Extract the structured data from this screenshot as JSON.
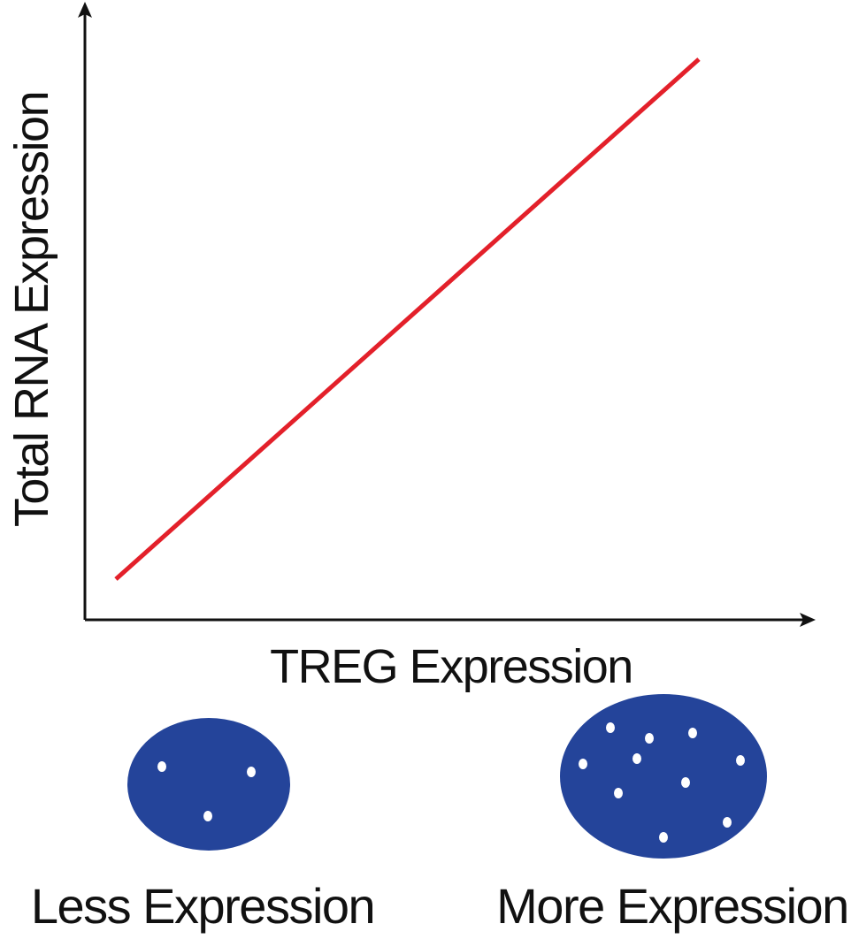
{
  "axes": {
    "x_label": "TREG Expression",
    "y_label": "Total RNA Expression"
  },
  "trend": {
    "description_color": "#e3202a",
    "direction": "increasing"
  },
  "cells": {
    "color": "#24449a",
    "less": {
      "label": "Less Expression",
      "dot_count": 3
    },
    "more": {
      "label": "More Expression",
      "dot_count": 11
    }
  }
}
